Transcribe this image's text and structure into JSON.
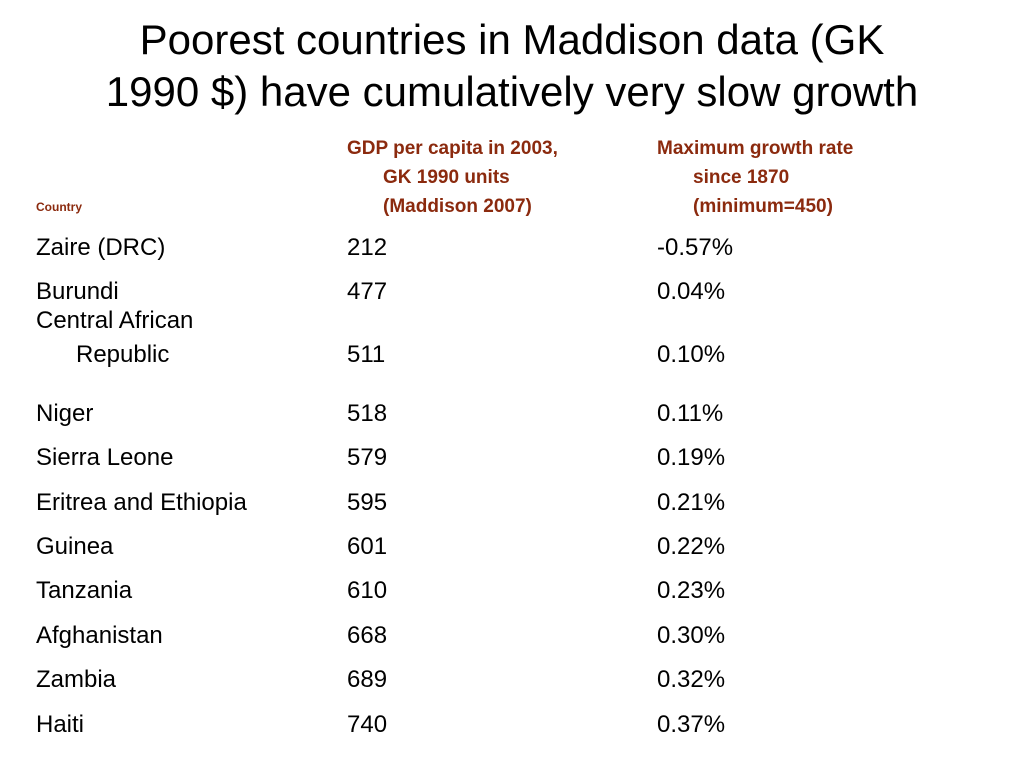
{
  "title": {
    "line1": "Poorest countries in Maddison data (GK",
    "line2": "1990 $) have cumulatively very slow growth"
  },
  "header": {
    "country": "Country",
    "gdp": [
      "GDP per capita in 2003,",
      "GK 1990 units",
      "(Maddison 2007)"
    ],
    "growth": [
      "Maximum growth rate",
      "since 1870",
      "(minimum=450)"
    ]
  },
  "colors": {
    "header": "#8b2a0e",
    "text": "#000000",
    "background": "#ffffff"
  },
  "rows": [
    {
      "country": "Zaire (DRC)",
      "gdp": "212",
      "growth": "-0.57%"
    },
    {
      "country": "Burundi",
      "gdp": "477",
      "growth": "0.04%"
    },
    {
      "country_lines": [
        "Central African",
        "Republic"
      ],
      "gdp": "511",
      "growth": "0.10%"
    },
    {
      "country": "Niger",
      "gdp": "518",
      "growth": "0.11%"
    },
    {
      "country": "Sierra Leone",
      "gdp": "579",
      "growth": "0.19%"
    },
    {
      "country": "Eritrea and Ethiopia",
      "gdp": "595",
      "growth": "0.21%"
    },
    {
      "country": "Guinea",
      "gdp": "601",
      "growth": "0.22%"
    },
    {
      "country": "Tanzania",
      "gdp": "610",
      "growth": "0.23%"
    },
    {
      "country": "Afghanistan",
      "gdp": "668",
      "growth": "0.30%"
    },
    {
      "country": "Zambia",
      "gdp": "689",
      "growth": "0.32%"
    },
    {
      "country": "Haiti",
      "gdp": "740",
      "growth": "0.37%"
    }
  ]
}
